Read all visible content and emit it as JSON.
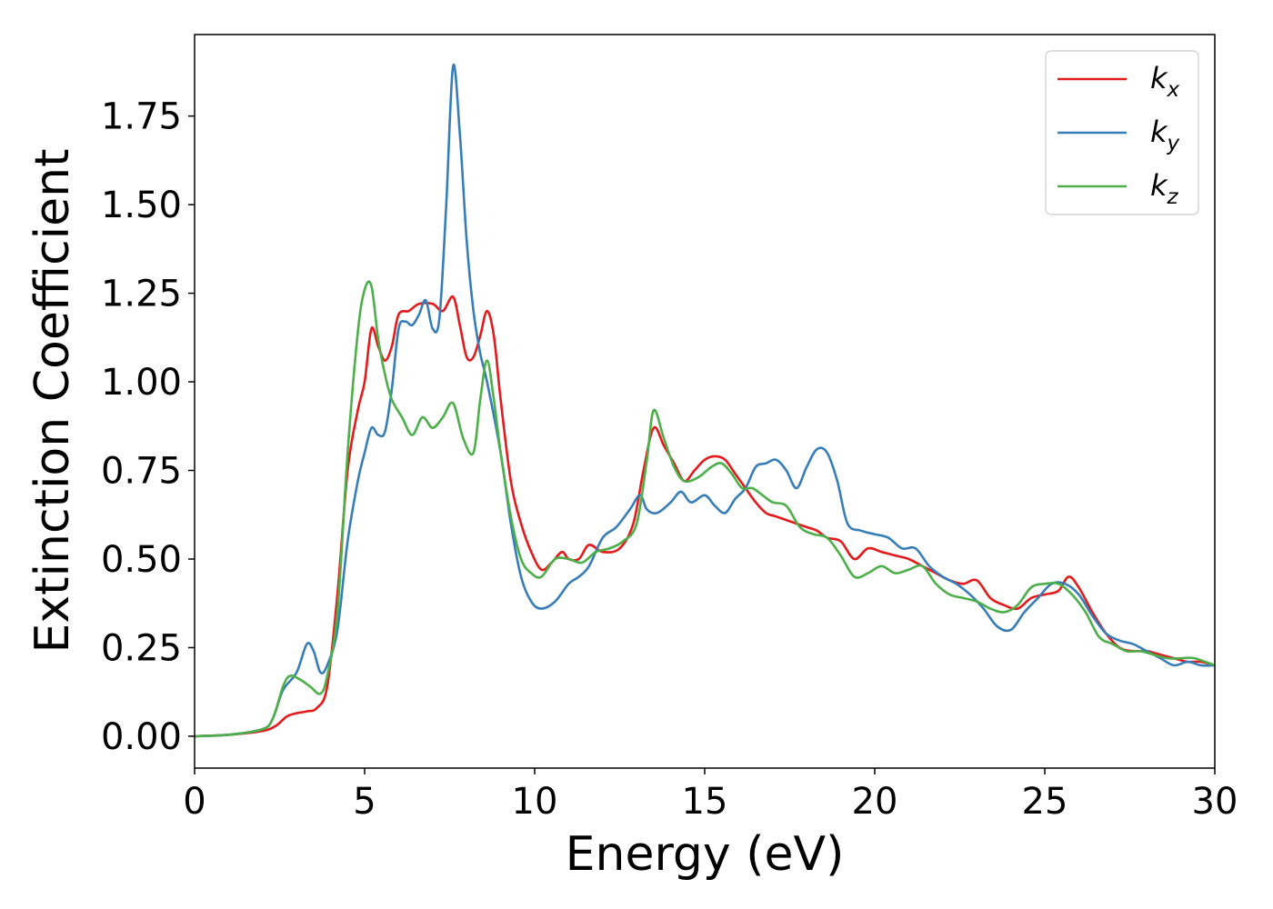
{
  "chart_data": {
    "type": "line",
    "title": "",
    "xlabel": "Energy (eV)",
    "ylabel": "Extinction Coefficient",
    "xlim": [
      0,
      30
    ],
    "ylim": [
      -0.09,
      1.98
    ],
    "xticks": [
      0,
      5,
      10,
      15,
      20,
      25,
      30
    ],
    "xtick_labels": [
      "0",
      "5",
      "10",
      "15",
      "20",
      "25",
      "30"
    ],
    "yticks": [
      0.0,
      0.25,
      0.5,
      0.75,
      1.0,
      1.25,
      1.5,
      1.75
    ],
    "ytick_labels": [
      "0.00",
      "0.25",
      "0.50",
      "0.75",
      "1.00",
      "1.25",
      "1.50",
      "1.75"
    ],
    "grid": false,
    "legend_position": "top-right",
    "series": [
      {
        "name": "k_x",
        "base": "k",
        "sub": "x",
        "color": "#e41a1c",
        "points": [
          [
            0,
            0
          ],
          [
            1,
            0.004
          ],
          [
            2,
            0.015
          ],
          [
            2.4,
            0.03
          ],
          [
            2.7,
            0.055
          ],
          [
            3,
            0.065
          ],
          [
            3.3,
            0.07
          ],
          [
            3.6,
            0.08
          ],
          [
            3.9,
            0.14
          ],
          [
            4.2,
            0.4
          ],
          [
            4.5,
            0.75
          ],
          [
            4.8,
            0.92
          ],
          [
            5,
            1.0
          ],
          [
            5.2,
            1.15
          ],
          [
            5.4,
            1.1
          ],
          [
            5.6,
            1.06
          ],
          [
            5.8,
            1.1
          ],
          [
            6,
            1.19
          ],
          [
            6.3,
            1.2
          ],
          [
            6.6,
            1.22
          ],
          [
            7,
            1.22
          ],
          [
            7.3,
            1.2
          ],
          [
            7.6,
            1.24
          ],
          [
            7.8,
            1.16
          ],
          [
            8,
            1.07
          ],
          [
            8.2,
            1.07
          ],
          [
            8.4,
            1.13
          ],
          [
            8.6,
            1.2
          ],
          [
            8.8,
            1.13
          ],
          [
            9,
            0.95
          ],
          [
            9.3,
            0.72
          ],
          [
            9.6,
            0.6
          ],
          [
            9.9,
            0.52
          ],
          [
            10.2,
            0.47
          ],
          [
            10.5,
            0.49
          ],
          [
            10.8,
            0.52
          ],
          [
            11,
            0.5
          ],
          [
            11.3,
            0.5
          ],
          [
            11.6,
            0.54
          ],
          [
            12,
            0.52
          ],
          [
            12.5,
            0.53
          ],
          [
            12.9,
            0.6
          ],
          [
            13.2,
            0.75
          ],
          [
            13.5,
            0.87
          ],
          [
            13.8,
            0.82
          ],
          [
            14.1,
            0.77
          ],
          [
            14.4,
            0.72
          ],
          [
            14.7,
            0.75
          ],
          [
            15,
            0.78
          ],
          [
            15.3,
            0.79
          ],
          [
            15.6,
            0.78
          ],
          [
            15.9,
            0.74
          ],
          [
            16.2,
            0.7
          ],
          [
            16.5,
            0.66
          ],
          [
            16.8,
            0.63
          ],
          [
            17.1,
            0.62
          ],
          [
            17.4,
            0.61
          ],
          [
            17.7,
            0.6
          ],
          [
            18,
            0.59
          ],
          [
            18.3,
            0.58
          ],
          [
            18.6,
            0.56
          ],
          [
            19,
            0.55
          ],
          [
            19.4,
            0.5
          ],
          [
            19.8,
            0.53
          ],
          [
            20.2,
            0.52
          ],
          [
            20.6,
            0.51
          ],
          [
            21,
            0.5
          ],
          [
            21.4,
            0.48
          ],
          [
            21.8,
            0.46
          ],
          [
            22.2,
            0.44
          ],
          [
            22.6,
            0.43
          ],
          [
            23,
            0.44
          ],
          [
            23.4,
            0.39
          ],
          [
            23.8,
            0.37
          ],
          [
            24.2,
            0.36
          ],
          [
            24.6,
            0.39
          ],
          [
            25,
            0.4
          ],
          [
            25.4,
            0.41
          ],
          [
            25.7,
            0.45
          ],
          [
            26,
            0.42
          ],
          [
            26.4,
            0.35
          ],
          [
            26.8,
            0.29
          ],
          [
            27.2,
            0.25
          ],
          [
            27.6,
            0.24
          ],
          [
            28,
            0.24
          ],
          [
            28.4,
            0.23
          ],
          [
            28.8,
            0.22
          ],
          [
            29.2,
            0.21
          ],
          [
            29.6,
            0.21
          ],
          [
            30,
            0.2
          ]
        ]
      },
      {
        "name": "k_y",
        "base": "k",
        "sub": "y",
        "color": "#377eb8",
        "points": [
          [
            0,
            0
          ],
          [
            1,
            0.004
          ],
          [
            2,
            0.02
          ],
          [
            2.3,
            0.05
          ],
          [
            2.6,
            0.13
          ],
          [
            3,
            0.18
          ],
          [
            3.3,
            0.26
          ],
          [
            3.5,
            0.24
          ],
          [
            3.7,
            0.18
          ],
          [
            3.9,
            0.2
          ],
          [
            4.2,
            0.3
          ],
          [
            4.5,
            0.55
          ],
          [
            4.8,
            0.72
          ],
          [
            5,
            0.8
          ],
          [
            5.2,
            0.87
          ],
          [
            5.4,
            0.85
          ],
          [
            5.6,
            0.86
          ],
          [
            5.8,
            0.98
          ],
          [
            6,
            1.15
          ],
          [
            6.2,
            1.17
          ],
          [
            6.4,
            1.16
          ],
          [
            6.6,
            1.19
          ],
          [
            6.8,
            1.23
          ],
          [
            7,
            1.15
          ],
          [
            7.2,
            1.18
          ],
          [
            7.4,
            1.5
          ],
          [
            7.6,
            1.89
          ],
          [
            7.8,
            1.7
          ],
          [
            8,
            1.4
          ],
          [
            8.2,
            1.2
          ],
          [
            8.4,
            1.08
          ],
          [
            8.6,
            1.0
          ],
          [
            9,
            0.8
          ],
          [
            9.3,
            0.6
          ],
          [
            9.6,
            0.45
          ],
          [
            9.9,
            0.38
          ],
          [
            10.2,
            0.36
          ],
          [
            10.6,
            0.38
          ],
          [
            11,
            0.43
          ],
          [
            11.3,
            0.45
          ],
          [
            11.6,
            0.48
          ],
          [
            12,
            0.56
          ],
          [
            12.4,
            0.59
          ],
          [
            12.8,
            0.64
          ],
          [
            13.1,
            0.68
          ],
          [
            13.3,
            0.64
          ],
          [
            13.6,
            0.63
          ],
          [
            14,
            0.66
          ],
          [
            14.3,
            0.69
          ],
          [
            14.6,
            0.66
          ],
          [
            15,
            0.68
          ],
          [
            15.3,
            0.65
          ],
          [
            15.6,
            0.63
          ],
          [
            15.9,
            0.67
          ],
          [
            16.2,
            0.7
          ],
          [
            16.5,
            0.76
          ],
          [
            16.8,
            0.77
          ],
          [
            17.1,
            0.78
          ],
          [
            17.4,
            0.75
          ],
          [
            17.7,
            0.7
          ],
          [
            18,
            0.76
          ],
          [
            18.3,
            0.81
          ],
          [
            18.6,
            0.8
          ],
          [
            18.9,
            0.72
          ],
          [
            19.2,
            0.6
          ],
          [
            19.6,
            0.58
          ],
          [
            20,
            0.57
          ],
          [
            20.4,
            0.56
          ],
          [
            20.8,
            0.53
          ],
          [
            21.2,
            0.53
          ],
          [
            21.6,
            0.48
          ],
          [
            22,
            0.45
          ],
          [
            22.4,
            0.43
          ],
          [
            22.8,
            0.4
          ],
          [
            23.2,
            0.36
          ],
          [
            23.6,
            0.31
          ],
          [
            24,
            0.3
          ],
          [
            24.4,
            0.35
          ],
          [
            24.8,
            0.39
          ],
          [
            25.2,
            0.43
          ],
          [
            25.6,
            0.43
          ],
          [
            26,
            0.4
          ],
          [
            26.4,
            0.34
          ],
          [
            26.8,
            0.29
          ],
          [
            27.2,
            0.27
          ],
          [
            27.6,
            0.26
          ],
          [
            28,
            0.24
          ],
          [
            28.4,
            0.22
          ],
          [
            28.8,
            0.2
          ],
          [
            29.2,
            0.21
          ],
          [
            29.6,
            0.2
          ],
          [
            30,
            0.2
          ]
        ]
      },
      {
        "name": "k_z",
        "base": "k",
        "sub": "z",
        "color": "#4daf4a",
        "points": [
          [
            0,
            0
          ],
          [
            1,
            0.004
          ],
          [
            2,
            0.02
          ],
          [
            2.3,
            0.05
          ],
          [
            2.6,
            0.14
          ],
          [
            2.8,
            0.17
          ],
          [
            3.1,
            0.16
          ],
          [
            3.4,
            0.14
          ],
          [
            3.7,
            0.12
          ],
          [
            3.9,
            0.17
          ],
          [
            4.2,
            0.35
          ],
          [
            4.5,
            0.8
          ],
          [
            4.8,
            1.14
          ],
          [
            5,
            1.26
          ],
          [
            5.2,
            1.27
          ],
          [
            5.4,
            1.12
          ],
          [
            5.6,
            1.02
          ],
          [
            5.8,
            0.95
          ],
          [
            6.1,
            0.9
          ],
          [
            6.4,
            0.85
          ],
          [
            6.7,
            0.9
          ],
          [
            7,
            0.87
          ],
          [
            7.3,
            0.9
          ],
          [
            7.6,
            0.94
          ],
          [
            7.9,
            0.84
          ],
          [
            8.2,
            0.8
          ],
          [
            8.4,
            0.95
          ],
          [
            8.6,
            1.06
          ],
          [
            8.8,
            0.95
          ],
          [
            9,
            0.8
          ],
          [
            9.3,
            0.62
          ],
          [
            9.6,
            0.5
          ],
          [
            9.9,
            0.46
          ],
          [
            10.2,
            0.45
          ],
          [
            10.6,
            0.5
          ],
          [
            11,
            0.5
          ],
          [
            11.4,
            0.49
          ],
          [
            11.8,
            0.52
          ],
          [
            12.2,
            0.53
          ],
          [
            12.6,
            0.55
          ],
          [
            13,
            0.6
          ],
          [
            13.3,
            0.78
          ],
          [
            13.5,
            0.92
          ],
          [
            13.8,
            0.84
          ],
          [
            14.1,
            0.76
          ],
          [
            14.4,
            0.72
          ],
          [
            14.8,
            0.73
          ],
          [
            15.2,
            0.76
          ],
          [
            15.5,
            0.77
          ],
          [
            15.8,
            0.74
          ],
          [
            16.1,
            0.7
          ],
          [
            16.4,
            0.7
          ],
          [
            16.7,
            0.68
          ],
          [
            17,
            0.66
          ],
          [
            17.4,
            0.65
          ],
          [
            17.8,
            0.59
          ],
          [
            18.2,
            0.57
          ],
          [
            18.6,
            0.56
          ],
          [
            19,
            0.51
          ],
          [
            19.4,
            0.45
          ],
          [
            19.8,
            0.46
          ],
          [
            20.2,
            0.48
          ],
          [
            20.6,
            0.46
          ],
          [
            21,
            0.47
          ],
          [
            21.4,
            0.48
          ],
          [
            21.8,
            0.43
          ],
          [
            22.2,
            0.4
          ],
          [
            22.6,
            0.39
          ],
          [
            23,
            0.38
          ],
          [
            23.4,
            0.36
          ],
          [
            23.8,
            0.35
          ],
          [
            24.2,
            0.37
          ],
          [
            24.6,
            0.42
          ],
          [
            25,
            0.43
          ],
          [
            25.4,
            0.43
          ],
          [
            25.8,
            0.4
          ],
          [
            26.2,
            0.35
          ],
          [
            26.6,
            0.28
          ],
          [
            27,
            0.26
          ],
          [
            27.4,
            0.24
          ],
          [
            27.8,
            0.24
          ],
          [
            28.2,
            0.23
          ],
          [
            28.6,
            0.22
          ],
          [
            29,
            0.22
          ],
          [
            29.4,
            0.22
          ],
          [
            30,
            0.2
          ]
        ]
      }
    ]
  }
}
